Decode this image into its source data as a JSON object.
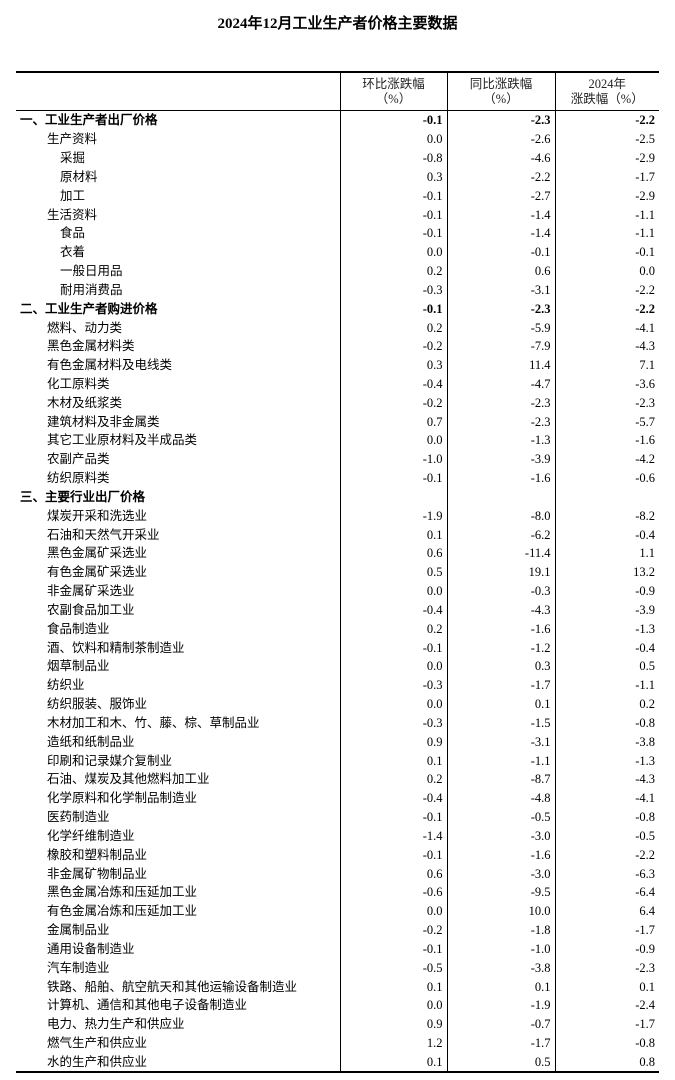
{
  "title": "2024年12月工业生产者价格主要数据",
  "headers": [
    {
      "line1": "环比涨跌幅",
      "line2": "（%）"
    },
    {
      "line1": "同比涨跌幅",
      "line2": "（%）"
    },
    {
      "line1": "2024年",
      "line2": "涨跌幅（%）"
    }
  ],
  "rows": [
    {
      "label": "一、工业生产者出厂价格",
      "level": 0,
      "bold": true,
      "mom": "-0.1",
      "yoy": "-2.3",
      "year": "-2.2"
    },
    {
      "label": "生产资料",
      "level": 1,
      "mom": "0.0",
      "yoy": "-2.6",
      "year": "-2.5"
    },
    {
      "label": "采掘",
      "level": 2,
      "mom": "-0.8",
      "yoy": "-4.6",
      "year": "-2.9"
    },
    {
      "label": "原材料",
      "level": 2,
      "mom": "0.3",
      "yoy": "-2.2",
      "year": "-1.7"
    },
    {
      "label": "加工",
      "level": 2,
      "mom": "-0.1",
      "yoy": "-2.7",
      "year": "-2.9"
    },
    {
      "label": "生活资料",
      "level": 1,
      "mom": "-0.1",
      "yoy": "-1.4",
      "year": "-1.1"
    },
    {
      "label": "食品",
      "level": 2,
      "mom": "-0.1",
      "yoy": "-1.4",
      "year": "-1.1"
    },
    {
      "label": "衣着",
      "level": 2,
      "mom": "0.0",
      "yoy": "-0.1",
      "year": "-0.1"
    },
    {
      "label": "一般日用品",
      "level": 2,
      "mom": "0.2",
      "yoy": "0.6",
      "year": "0.0"
    },
    {
      "label": "耐用消费品",
      "level": 2,
      "mom": "-0.3",
      "yoy": "-3.1",
      "year": "-2.2"
    },
    {
      "label": "二、工业生产者购进价格",
      "level": 0,
      "bold": true,
      "mom": "-0.1",
      "yoy": "-2.3",
      "year": "-2.2"
    },
    {
      "label": "燃料、动力类",
      "level": 1,
      "mom": "0.2",
      "yoy": "-5.9",
      "year": "-4.1"
    },
    {
      "label": "黑色金属材料类",
      "level": 1,
      "mom": "-0.2",
      "yoy": "-7.9",
      "year": "-4.3"
    },
    {
      "label": "有色金属材料及电线类",
      "level": 1,
      "mom": "0.3",
      "yoy": "11.4",
      "year": "7.1"
    },
    {
      "label": "化工原料类",
      "level": 1,
      "mom": "-0.4",
      "yoy": "-4.7",
      "year": "-3.6"
    },
    {
      "label": "木材及纸浆类",
      "level": 1,
      "mom": "-0.2",
      "yoy": "-2.3",
      "year": "-2.3"
    },
    {
      "label": "建筑材料及非金属类",
      "level": 1,
      "mom": "0.7",
      "yoy": "-2.3",
      "year": "-5.7"
    },
    {
      "label": "其它工业原材料及半成品类",
      "level": 1,
      "mom": "0.0",
      "yoy": "-1.3",
      "year": "-1.6"
    },
    {
      "label": "农副产品类",
      "level": 1,
      "mom": "-1.0",
      "yoy": "-3.9",
      "year": "-4.2"
    },
    {
      "label": "纺织原料类",
      "level": 1,
      "mom": "-0.1",
      "yoy": "-1.6",
      "year": "-0.6"
    },
    {
      "label": "三、主要行业出厂价格",
      "level": 0,
      "bold": true,
      "mom": "",
      "yoy": "",
      "year": ""
    },
    {
      "label": "煤炭开采和洗选业",
      "level": 1,
      "mom": "-1.9",
      "yoy": "-8.0",
      "year": "-8.2"
    },
    {
      "label": "石油和天然气开采业",
      "level": 1,
      "mom": "0.1",
      "yoy": "-6.2",
      "year": "-0.4"
    },
    {
      "label": "黑色金属矿采选业",
      "level": 1,
      "mom": "0.6",
      "yoy": "-11.4",
      "year": "1.1"
    },
    {
      "label": "有色金属矿采选业",
      "level": 1,
      "mom": "0.5",
      "yoy": "19.1",
      "year": "13.2"
    },
    {
      "label": "非金属矿采选业",
      "level": 1,
      "mom": "0.0",
      "yoy": "-0.3",
      "year": "-0.9"
    },
    {
      "label": "农副食品加工业",
      "level": 1,
      "mom": "-0.4",
      "yoy": "-4.3",
      "year": "-3.9"
    },
    {
      "label": "食品制造业",
      "level": 1,
      "mom": "0.2",
      "yoy": "-1.6",
      "year": "-1.3"
    },
    {
      "label": "酒、饮料和精制茶制造业",
      "level": 1,
      "mom": "-0.1",
      "yoy": "-1.2",
      "year": "-0.4"
    },
    {
      "label": "烟草制品业",
      "level": 1,
      "mom": "0.0",
      "yoy": "0.3",
      "year": "0.5"
    },
    {
      "label": "纺织业",
      "level": 1,
      "mom": "-0.3",
      "yoy": "-1.7",
      "year": "-1.1"
    },
    {
      "label": "纺织服装、服饰业",
      "level": 1,
      "mom": "0.0",
      "yoy": "0.1",
      "year": "0.2"
    },
    {
      "label": "木材加工和木、竹、藤、棕、草制品业",
      "level": 1,
      "mom": "-0.3",
      "yoy": "-1.5",
      "year": "-0.8"
    },
    {
      "label": "造纸和纸制品业",
      "level": 1,
      "mom": "0.9",
      "yoy": "-3.1",
      "year": "-3.8"
    },
    {
      "label": "印刷和记录媒介复制业",
      "level": 1,
      "mom": "0.1",
      "yoy": "-1.1",
      "year": "-1.3"
    },
    {
      "label": "石油、煤炭及其他燃料加工业",
      "level": 1,
      "mom": "0.2",
      "yoy": "-8.7",
      "year": "-4.3"
    },
    {
      "label": "化学原料和化学制品制造业",
      "level": 1,
      "mom": "-0.4",
      "yoy": "-4.8",
      "year": "-4.1"
    },
    {
      "label": "医药制造业",
      "level": 1,
      "mom": "-0.1",
      "yoy": "-0.5",
      "year": "-0.8"
    },
    {
      "label": "化学纤维制造业",
      "level": 1,
      "mom": "-1.4",
      "yoy": "-3.0",
      "year": "-0.5"
    },
    {
      "label": "橡胶和塑料制品业",
      "level": 1,
      "mom": "-0.1",
      "yoy": "-1.6",
      "year": "-2.2"
    },
    {
      "label": "非金属矿物制品业",
      "level": 1,
      "mom": "0.6",
      "yoy": "-3.0",
      "year": "-6.3"
    },
    {
      "label": "黑色金属冶炼和压延加工业",
      "level": 1,
      "mom": "-0.6",
      "yoy": "-9.5",
      "year": "-6.4"
    },
    {
      "label": "有色金属冶炼和压延加工业",
      "level": 1,
      "mom": "0.0",
      "yoy": "10.0",
      "year": "6.4"
    },
    {
      "label": "金属制品业",
      "level": 1,
      "mom": "-0.2",
      "yoy": "-1.8",
      "year": "-1.7"
    },
    {
      "label": "通用设备制造业",
      "level": 1,
      "mom": "-0.1",
      "yoy": "-1.0",
      "year": "-0.9"
    },
    {
      "label": "汽车制造业",
      "level": 1,
      "mom": "-0.5",
      "yoy": "-3.8",
      "year": "-2.3"
    },
    {
      "label": "铁路、船舶、航空航天和其他运输设备制造业",
      "level": 1,
      "mom": "0.1",
      "yoy": "0.1",
      "year": "0.1"
    },
    {
      "label": "计算机、通信和其他电子设备制造业",
      "level": 1,
      "mom": "0.0",
      "yoy": "-1.9",
      "year": "-2.4"
    },
    {
      "label": "电力、热力生产和供应业",
      "level": 1,
      "mom": "0.9",
      "yoy": "-0.7",
      "year": "-1.7"
    },
    {
      "label": "燃气生产和供应业",
      "level": 1,
      "mom": "1.2",
      "yoy": "-1.7",
      "year": "-0.8"
    },
    {
      "label": "水的生产和供应业",
      "level": 1,
      "mom": "0.1",
      "yoy": "0.5",
      "year": "0.8"
    }
  ]
}
